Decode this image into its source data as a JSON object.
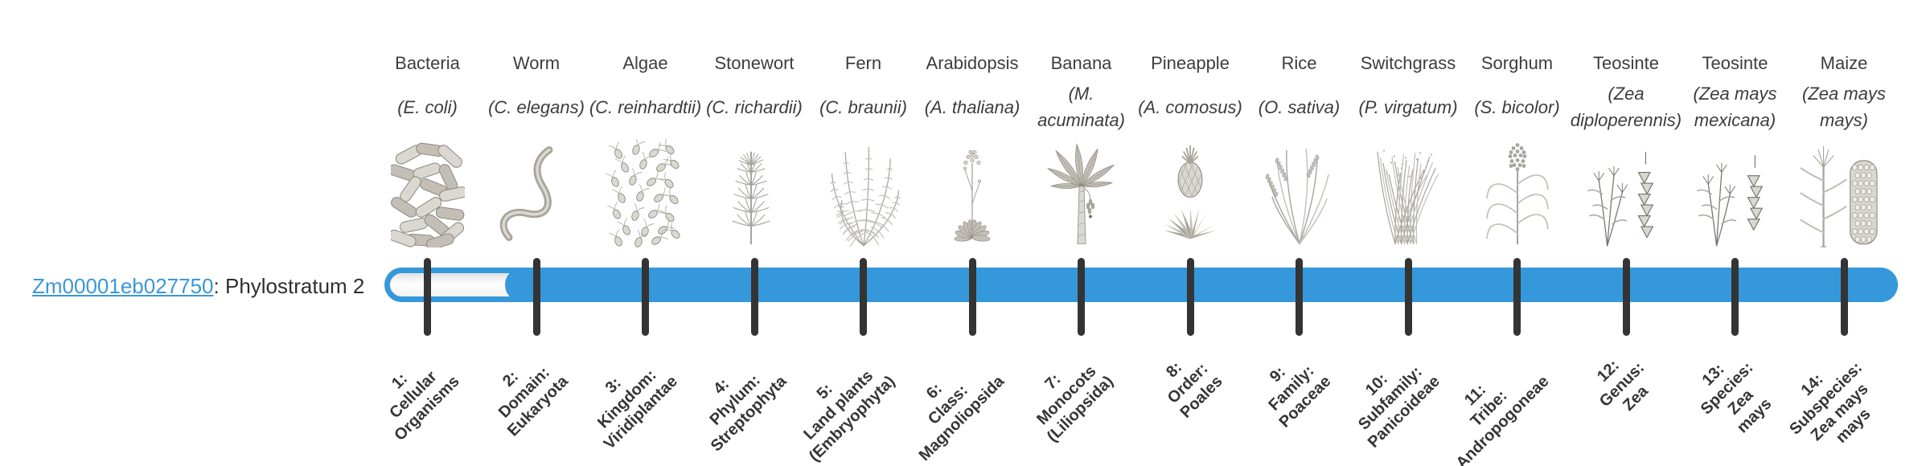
{
  "gene": {
    "id": "Zm00001eb027750",
    "suffix": ": Phylostratum 2",
    "stratum_number": 2
  },
  "timeline": {
    "accent_color": "#3598db",
    "link_color": "#3b97d9",
    "tick_color": "#343434",
    "track_background": "#fbfbfb",
    "filled_from_stratum": 2,
    "total_strata": 14
  },
  "organisms": [
    {
      "common_name": "Bacteria",
      "scientific_name": "(E. coli)",
      "icon": "bacteria-illustration",
      "stratum_lines": [
        "1:",
        "Cellular",
        "Organisms"
      ]
    },
    {
      "common_name": "Worm",
      "scientific_name": "(C. elegans)",
      "icon": "worm-illustration",
      "stratum_lines": [
        "2:",
        "Domain:",
        "Eukaryota"
      ]
    },
    {
      "common_name": "Algae",
      "scientific_name": "(C. reinhardtii)",
      "icon": "algae-illustration",
      "stratum_lines": [
        "3:",
        "Kingdom:",
        "Viridiplantae"
      ]
    },
    {
      "common_name": "Stonewort",
      "scientific_name": "(C. richardii)",
      "icon": "stonewort-illustration",
      "stratum_lines": [
        "4:",
        "Phylum:",
        "Streptophyta"
      ]
    },
    {
      "common_name": "Fern",
      "scientific_name": "(C. braunii)",
      "icon": "fern-illustration",
      "stratum_lines": [
        "5:",
        "Land plants",
        "(Embryophyta)"
      ]
    },
    {
      "common_name": "Arabidopsis",
      "scientific_name": "(A. thaliana)",
      "icon": "arabidopsis-illustration",
      "stratum_lines": [
        "6:",
        "Class:",
        "Magnoliopsida"
      ]
    },
    {
      "common_name": "Banana",
      "scientific_name": "(M. acuminata)",
      "icon": "banana-illustration",
      "stratum_lines": [
        "7:",
        "Monocots",
        "(Liliopsida)"
      ]
    },
    {
      "common_name": "Pineapple",
      "scientific_name": "(A. comosus)",
      "icon": "pineapple-illustration",
      "stratum_lines": [
        "8:",
        "Order:",
        "Poales"
      ]
    },
    {
      "common_name": "Rice",
      "scientific_name": "(O. sativa)",
      "icon": "rice-illustration",
      "stratum_lines": [
        "9:",
        "Family:",
        "Poaceae"
      ]
    },
    {
      "common_name": "Switchgrass",
      "scientific_name": "(P. virgatum)",
      "icon": "switchgrass-illustration",
      "stratum_lines": [
        "10:",
        "Subfamily:",
        "Panicoideae"
      ]
    },
    {
      "common_name": "Sorghum",
      "scientific_name": "(S. bicolor)",
      "icon": "sorghum-illustration",
      "stratum_lines": [
        "11:",
        "Tribe:",
        "Andropogoneae"
      ]
    },
    {
      "common_name": "Teosinte",
      "scientific_name": "(Zea diploperennis)",
      "icon": "teosinte-diploperennis-illustration",
      "stratum_lines": [
        "12:",
        "Genus:",
        "Zea"
      ]
    },
    {
      "common_name": "Teosinte",
      "scientific_name": "(Zea mays mexicana)",
      "icon": "teosinte-mexicana-illustration",
      "stratum_lines": [
        "13:",
        "Species:",
        "Zea",
        "mays"
      ]
    },
    {
      "common_name": "Maize",
      "scientific_name": "(Zea mays mays)",
      "icon": "maize-illustration",
      "stratum_lines": [
        "14:",
        "Subspecies:",
        "Zea mays",
        "mays"
      ]
    }
  ]
}
